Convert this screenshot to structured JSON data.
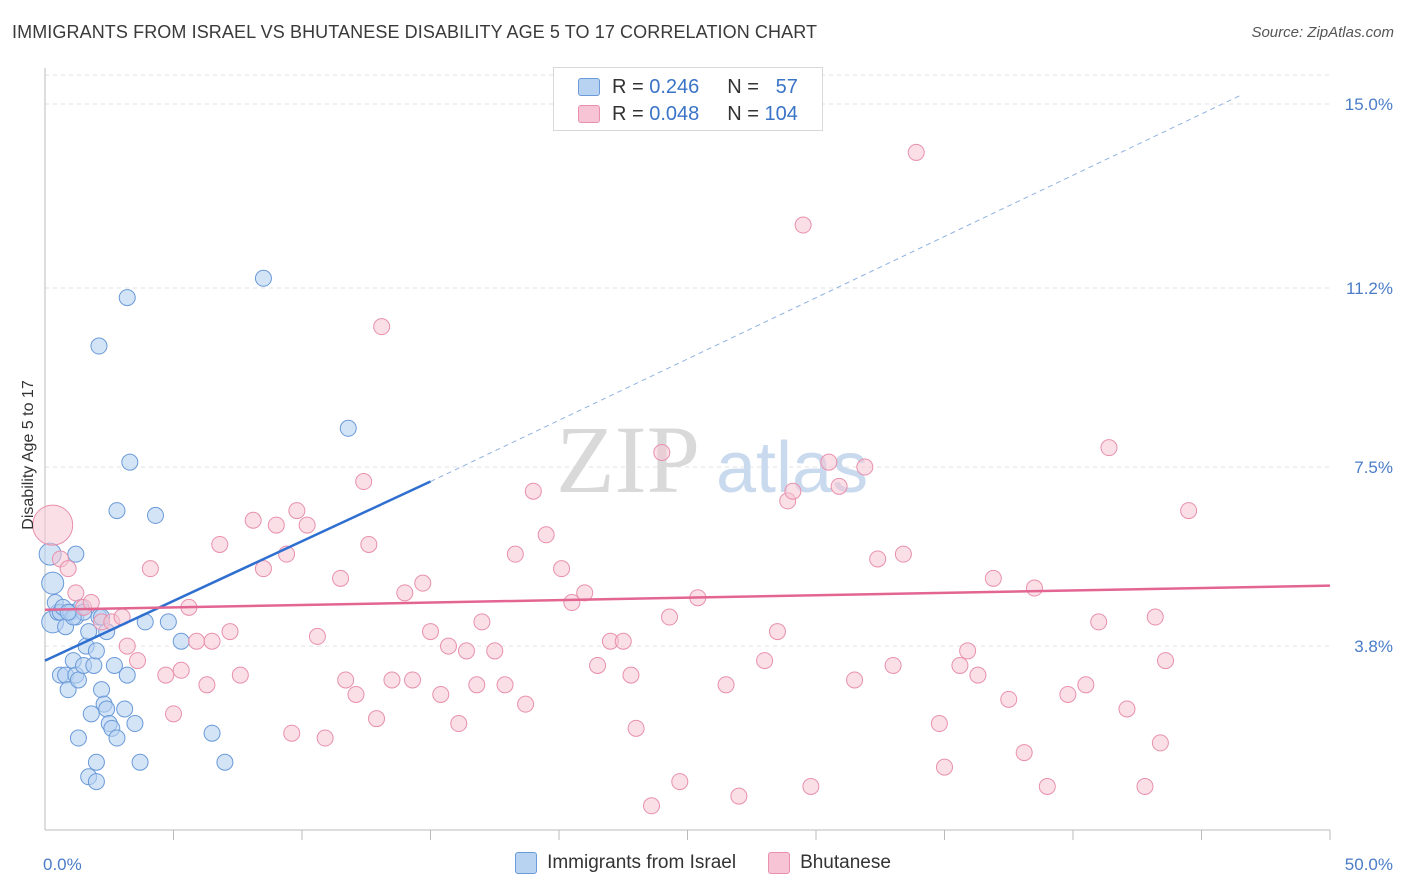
{
  "title": "IMMIGRANTS FROM ISRAEL VS BHUTANESE DISABILITY AGE 5 TO 17 CORRELATION CHART",
  "source": "Source: ZipAtlas.com",
  "watermark": {
    "zip": "ZIP",
    "atlas": "atlas"
  },
  "legend": {
    "rows": [
      {
        "r_label": "R =",
        "r_value": "0.246",
        "n_label": "N =",
        "n_value": "57"
      },
      {
        "r_label": "R =",
        "r_value": "0.048",
        "n_label": "N =",
        "n_value": "104"
      }
    ]
  },
  "chart_data": {
    "type": "scatter",
    "ylabel": "Disability Age 5 to 17",
    "xlim": [
      0,
      50
    ],
    "ylim": [
      0,
      15.6
    ],
    "x_tick_labels": [
      "0.0%",
      "50.0%"
    ],
    "y_ticks": [
      {
        "value": 3.8,
        "label": "3.8%"
      },
      {
        "value": 7.5,
        "label": "7.5%"
      },
      {
        "value": 11.2,
        "label": "11.2%"
      },
      {
        "value": 15.0,
        "label": "15.0%"
      }
    ],
    "grid": true,
    "colors": {
      "israel_fill": "#b8d2f2",
      "israel_stroke": "#6a9ad8",
      "israel_line": "#2f6fd0",
      "bhutan_fill": "#f6c4d4",
      "bhutan_stroke": "#e890ad",
      "bhutan_line": "#e26592"
    },
    "series": [
      {
        "name": "Immigrants from Israel",
        "trend": {
          "x0": 0,
          "y0": 3.5,
          "x1": 15,
          "y1": 7.2,
          "dash_to_x": 46.6,
          "dash_to_y": 15.2
        },
        "points": [
          [
            0.3,
            5.1
          ],
          [
            0.3,
            4.3
          ],
          [
            0.5,
            4.5
          ],
          [
            0.4,
            4.7
          ],
          [
            0.6,
            4.5
          ],
          [
            0.7,
            4.6
          ],
          [
            0.8,
            4.2
          ],
          [
            1.0,
            4.5
          ],
          [
            1.2,
            4.4
          ],
          [
            1.4,
            4.6
          ],
          [
            0.6,
            3.2
          ],
          [
            0.8,
            3.2
          ],
          [
            0.9,
            2.9
          ],
          [
            1.1,
            3.5
          ],
          [
            1.2,
            3.2
          ],
          [
            1.3,
            3.1
          ],
          [
            1.5,
            3.4
          ],
          [
            1.6,
            3.8
          ],
          [
            1.7,
            4.1
          ],
          [
            1.9,
            3.4
          ],
          [
            2.0,
            3.7
          ],
          [
            2.1,
            4.4
          ],
          [
            2.2,
            2.9
          ],
          [
            2.3,
            2.6
          ],
          [
            2.4,
            2.5
          ],
          [
            2.5,
            2.2
          ],
          [
            2.6,
            2.1
          ],
          [
            2.8,
            1.9
          ],
          [
            1.8,
            2.4
          ],
          [
            2.0,
            1.4
          ],
          [
            1.7,
            1.1
          ],
          [
            2.0,
            1.0
          ],
          [
            1.3,
            1.9
          ],
          [
            2.7,
            3.4
          ],
          [
            2.4,
            4.1
          ],
          [
            3.1,
            2.5
          ],
          [
            3.2,
            3.2
          ],
          [
            3.5,
            2.2
          ],
          [
            3.7,
            1.4
          ],
          [
            3.9,
            4.3
          ],
          [
            4.3,
            6.5
          ],
          [
            2.8,
            6.6
          ],
          [
            3.3,
            7.6
          ],
          [
            3.2,
            11.0
          ],
          [
            2.1,
            10.0
          ],
          [
            1.2,
            5.7
          ],
          [
            2.2,
            4.4
          ],
          [
            4.8,
            4.3
          ],
          [
            5.3,
            3.9
          ],
          [
            6.5,
            2.0
          ],
          [
            7.0,
            1.4
          ],
          [
            8.5,
            11.4
          ],
          [
            11.8,
            8.3
          ],
          [
            0.2,
            5.7
          ],
          [
            1.5,
            4.5
          ],
          [
            1.1,
            4.4
          ],
          [
            0.9,
            4.5
          ]
        ]
      },
      {
        "name": "Bhutanese",
        "trend": {
          "x0": 0,
          "y0": 4.55,
          "x1": 50,
          "y1": 5.05
        },
        "points": [
          [
            0.3,
            6.3
          ],
          [
            0.6,
            5.6
          ],
          [
            0.9,
            5.4
          ],
          [
            1.2,
            4.9
          ],
          [
            1.5,
            4.6
          ],
          [
            1.8,
            4.7
          ],
          [
            2.2,
            4.3
          ],
          [
            2.6,
            4.3
          ],
          [
            3.0,
            4.4
          ],
          [
            3.2,
            3.8
          ],
          [
            3.6,
            3.5
          ],
          [
            4.1,
            5.4
          ],
          [
            4.7,
            3.2
          ],
          [
            5.0,
            2.4
          ],
          [
            5.3,
            3.3
          ],
          [
            5.6,
            4.6
          ],
          [
            5.9,
            3.9
          ],
          [
            6.3,
            3.0
          ],
          [
            6.5,
            3.9
          ],
          [
            6.8,
            5.9
          ],
          [
            7.2,
            4.1
          ],
          [
            7.6,
            3.2
          ],
          [
            8.1,
            6.4
          ],
          [
            8.5,
            5.4
          ],
          [
            9.0,
            6.3
          ],
          [
            9.4,
            5.7
          ],
          [
            9.6,
            2.0
          ],
          [
            9.8,
            6.6
          ],
          [
            10.2,
            6.3
          ],
          [
            10.6,
            4.0
          ],
          [
            10.9,
            1.9
          ],
          [
            11.5,
            5.2
          ],
          [
            11.7,
            3.1
          ],
          [
            12.1,
            2.8
          ],
          [
            12.4,
            7.2
          ],
          [
            12.6,
            5.9
          ],
          [
            12.9,
            2.3
          ],
          [
            13.1,
            10.4
          ],
          [
            13.5,
            3.1
          ],
          [
            14.0,
            4.9
          ],
          [
            14.3,
            3.1
          ],
          [
            14.7,
            5.1
          ],
          [
            15.0,
            4.1
          ],
          [
            15.4,
            2.8
          ],
          [
            15.7,
            3.8
          ],
          [
            16.1,
            2.2
          ],
          [
            16.4,
            3.7
          ],
          [
            16.8,
            3.0
          ],
          [
            17.0,
            4.3
          ],
          [
            17.5,
            3.7
          ],
          [
            17.9,
            3.0
          ],
          [
            18.3,
            5.7
          ],
          [
            18.7,
            2.6
          ],
          [
            19.0,
            7.0
          ],
          [
            19.5,
            6.1
          ],
          [
            20.1,
            5.4
          ],
          [
            20.5,
            4.7
          ],
          [
            21.0,
            4.9
          ],
          [
            21.5,
            3.4
          ],
          [
            22.0,
            3.9
          ],
          [
            22.5,
            3.9
          ],
          [
            22.8,
            3.2
          ],
          [
            23.0,
            2.1
          ],
          [
            23.6,
            0.5
          ],
          [
            24.0,
            7.8
          ],
          [
            24.3,
            4.4
          ],
          [
            24.7,
            1.0
          ],
          [
            25.4,
            4.8
          ],
          [
            26.5,
            3.0
          ],
          [
            27.0,
            0.7
          ],
          [
            28.0,
            3.5
          ],
          [
            28.5,
            4.1
          ],
          [
            28.9,
            6.8
          ],
          [
            29.1,
            7.0
          ],
          [
            29.5,
            12.5
          ],
          [
            29.8,
            0.9
          ],
          [
            30.5,
            7.6
          ],
          [
            30.9,
            7.1
          ],
          [
            31.5,
            3.1
          ],
          [
            31.9,
            7.5
          ],
          [
            32.4,
            5.6
          ],
          [
            33.0,
            3.4
          ],
          [
            33.4,
            5.7
          ],
          [
            33.9,
            14.0
          ],
          [
            34.8,
            2.2
          ],
          [
            35.0,
            1.3
          ],
          [
            35.6,
            3.4
          ],
          [
            35.9,
            3.7
          ],
          [
            36.3,
            3.2
          ],
          [
            36.9,
            5.2
          ],
          [
            37.5,
            2.7
          ],
          [
            38.1,
            1.6
          ],
          [
            38.5,
            5.0
          ],
          [
            39.0,
            0.9
          ],
          [
            39.8,
            2.8
          ],
          [
            40.5,
            3.0
          ],
          [
            41.0,
            4.3
          ],
          [
            41.4,
            7.9
          ],
          [
            42.1,
            2.5
          ],
          [
            42.8,
            0.9
          ],
          [
            43.2,
            4.4
          ],
          [
            43.4,
            1.8
          ],
          [
            43.6,
            3.5
          ],
          [
            44.5,
            6.6
          ]
        ]
      }
    ]
  },
  "bottom_legend": [
    {
      "label": "Immigrants from Israel"
    },
    {
      "label": "Bhutanese"
    }
  ]
}
